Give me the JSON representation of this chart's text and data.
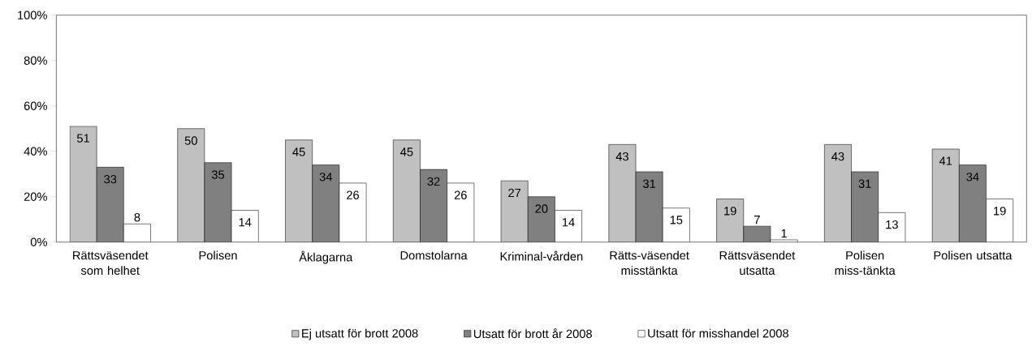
{
  "chart_data": {
    "type": "bar",
    "categories": [
      "Rättsväsendet som helhet",
      "Polisen",
      "Åklagarna",
      "Domstolarna",
      "Kriminal-vården",
      "Rätts-väsendet misstänkta",
      "Rättsväsendet utsatta",
      "Polisen miss-tänkta",
      "Polisen utsatta"
    ],
    "series": [
      {
        "name": "Ej utsatt för brott 2008",
        "color": "#c0c0c0",
        "values": [
          51,
          50,
          45,
          45,
          27,
          43,
          19,
          43,
          41
        ]
      },
      {
        "name": "Utsatt för brott år 2008",
        "color": "#808080",
        "values": [
          33,
          35,
          34,
          32,
          20,
          31,
          7,
          31,
          34
        ]
      },
      {
        "name": "Utsatt för misshandel 2008",
        "color": "#ffffff",
        "values": [
          8,
          14,
          26,
          26,
          14,
          15,
          1,
          13,
          19
        ]
      }
    ],
    "ylim": [
      0,
      100
    ],
    "yticks": [
      {
        "value": 0,
        "label": "0%"
      },
      {
        "value": 20,
        "label": "20%"
      },
      {
        "value": 40,
        "label": "40%"
      },
      {
        "value": 60,
        "label": "60%"
      },
      {
        "value": 80,
        "label": "80%"
      },
      {
        "value": 100,
        "label": "100%"
      }
    ],
    "data_labels": true,
    "legend": "bottom",
    "grid": false
  }
}
